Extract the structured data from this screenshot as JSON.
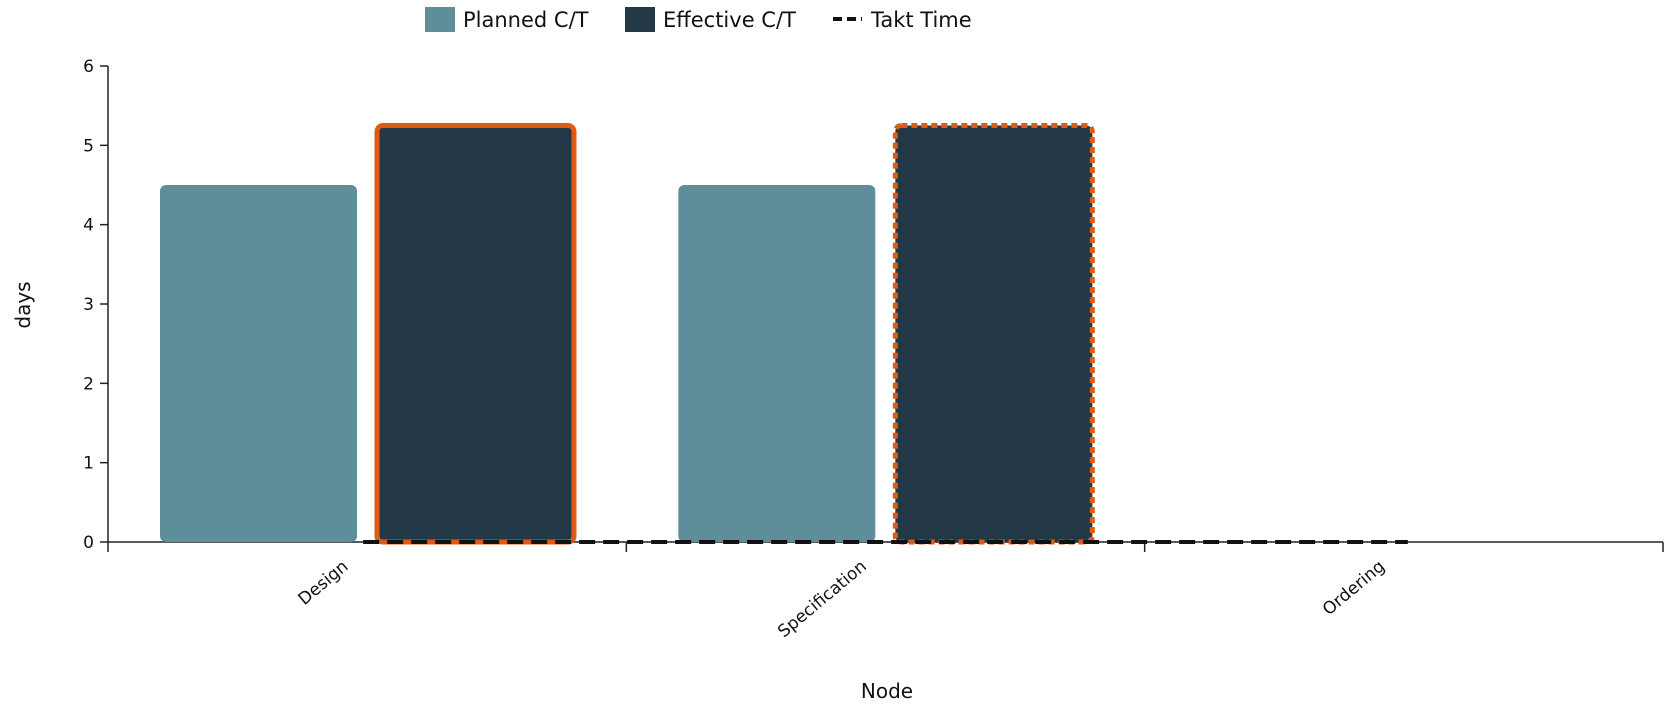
{
  "chart_data": {
    "type": "bar",
    "categories": [
      "Design",
      "Specification",
      "Ordering"
    ],
    "series": [
      {
        "name": "Planned C/T",
        "values": [
          4.5,
          4.5,
          0
        ],
        "color": "#5e8e9a"
      },
      {
        "name": "Effective C/T",
        "values": [
          5.25,
          5.25,
          0
        ],
        "color": "#223846"
      }
    ],
    "highlight": {
      "Design": "solid",
      "Specification": "dotted",
      "color": "#e05a14"
    },
    "takt_time": {
      "name": "Takt Time",
      "values": [
        0,
        0,
        0
      ],
      "style": "dashed",
      "color": "#111111"
    },
    "xlabel": "Node",
    "ylabel": "days",
    "ylim": [
      0,
      6
    ],
    "yticks": [
      0,
      1,
      2,
      3,
      4,
      5,
      6
    ],
    "grid": false,
    "legend": "top-center"
  }
}
